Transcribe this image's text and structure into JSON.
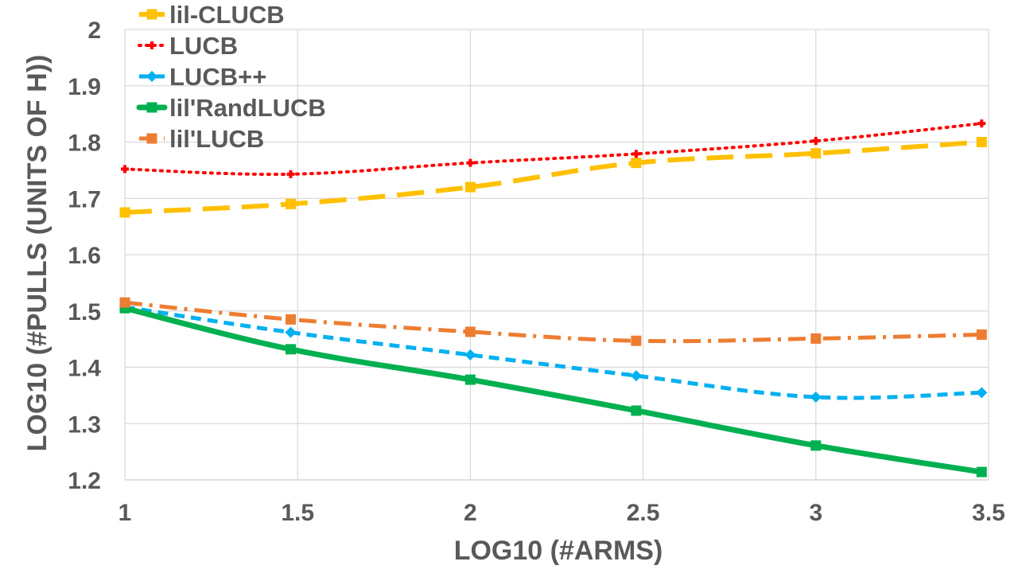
{
  "chart_data": {
    "type": "line",
    "title": "",
    "xlabel": "LOG10 (#ARMS)",
    "ylabel": "LOG10 (#PULLS (UNITS OF H))",
    "x": [
      1,
      1.48,
      2,
      2.48,
      3,
      3.48
    ],
    "xlim": [
      1,
      3.5
    ],
    "ylim": [
      1.2,
      2
    ],
    "xticks": [
      "1",
      "1.5",
      "2",
      "2.5",
      "3",
      "3.5"
    ],
    "yticks": [
      "1.2",
      "1.3",
      "1.4",
      "1.5",
      "1.6",
      "1.7",
      "1.8",
      "1.9",
      "2"
    ],
    "grid": "on",
    "legend_position": "top-left",
    "series": [
      {
        "name": "lil-CLUCB",
        "color": "#FFC000",
        "style": "long-dash",
        "marker": "square",
        "values": [
          1.675,
          1.69,
          1.72,
          1.763,
          1.78,
          1.8
        ]
      },
      {
        "name": "LUCB",
        "color": "#FF0000",
        "style": "dotted",
        "marker": "dash",
        "values": [
          1.752,
          1.743,
          1.763,
          1.779,
          1.802,
          1.833
        ]
      },
      {
        "name": "LUCB++",
        "color": "#00B0F0",
        "style": "short-dash",
        "marker": "diamond",
        "values": [
          1.507,
          1.462,
          1.422,
          1.385,
          1.347,
          1.355
        ]
      },
      {
        "name": "lil'RandLUCB",
        "color": "#00B050",
        "style": "solid",
        "marker": "square",
        "values": [
          1.505,
          1.432,
          1.378,
          1.323,
          1.261,
          1.214
        ]
      },
      {
        "name": "lil'LUCB",
        "color": "#ED7D31",
        "style": "dash-dot",
        "marker": "square",
        "values": [
          1.515,
          1.485,
          1.463,
          1.447,
          1.451,
          1.458
        ]
      }
    ]
  }
}
